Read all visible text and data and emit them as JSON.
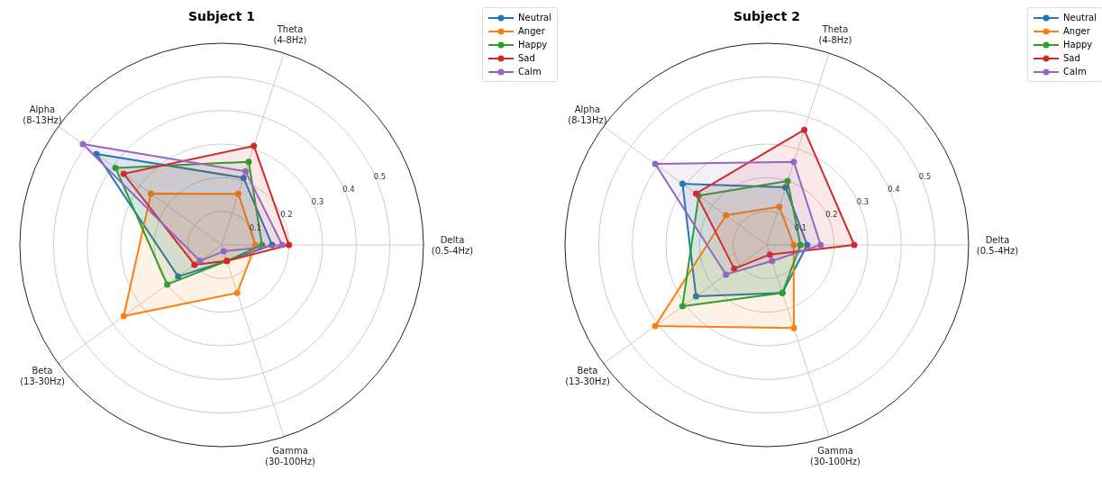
{
  "chart_data": [
    {
      "type": "radar",
      "title": "Subject 1",
      "categories": [
        "Theta\n(4-8Hz)",
        "Delta\n(0.5-4Hz)",
        "Gamma\n(30-100Hz)",
        "Beta\n(13-30Hz)",
        "Alpha\n(8-13Hz)"
      ],
      "series": [
        {
          "name": "Neutral",
          "color": "#1f77b4",
          "values": [
            0.21,
            0.15,
            0.05,
            0.16,
            0.46
          ]
        },
        {
          "name": "Anger",
          "color": "#ff7f0e",
          "values": [
            0.16,
            0.1,
            0.15,
            0.36,
            0.26
          ]
        },
        {
          "name": "Happy",
          "color": "#2ca02c",
          "values": [
            0.26,
            0.12,
            0.05,
            0.2,
            0.39
          ]
        },
        {
          "name": "Sad",
          "color": "#d62728",
          "values": [
            0.31,
            0.2,
            0.05,
            0.1,
            0.36
          ]
        },
        {
          "name": "Calm",
          "color": "#9467bd",
          "values": [
            0.23,
            0.18,
            0.02,
            0.08,
            0.51
          ]
        }
      ],
      "ylim": [
        0,
        0.6
      ],
      "yticks": [
        0.1,
        0.2,
        0.3,
        0.4,
        0.5
      ],
      "grid": true,
      "legend": "top right",
      "marker": "circle"
    },
    {
      "type": "radar",
      "title": "Subject 2",
      "categories": [
        "Theta\n(4-8Hz)",
        "Delta\n(0.5-4Hz)",
        "Gamma\n(30-100Hz)",
        "Beta\n(13-30Hz)",
        "Alpha\n(8-13Hz)"
      ],
      "series": [
        {
          "name": "Neutral",
          "color": "#1f77b4",
          "values": [
            0.18,
            0.12,
            0.15,
            0.26,
            0.31
          ]
        },
        {
          "name": "Anger",
          "color": "#ff7f0e",
          "values": [
            0.12,
            0.08,
            0.26,
            0.41,
            0.15
          ]
        },
        {
          "name": "Happy",
          "color": "#2ca02c",
          "values": [
            0.2,
            0.1,
            0.15,
            0.31,
            0.25
          ]
        },
        {
          "name": "Sad",
          "color": "#d62728",
          "values": [
            0.36,
            0.26,
            0.03,
            0.12,
            0.26
          ]
        },
        {
          "name": "Calm",
          "color": "#9467bd",
          "values": [
            0.26,
            0.16,
            0.05,
            0.15,
            0.41
          ]
        }
      ],
      "ylim": [
        0,
        0.6
      ],
      "yticks": [
        0.1,
        0.2,
        0.3,
        0.4,
        0.5
      ],
      "grid": true,
      "legend": "top right",
      "marker": "circle"
    }
  ]
}
